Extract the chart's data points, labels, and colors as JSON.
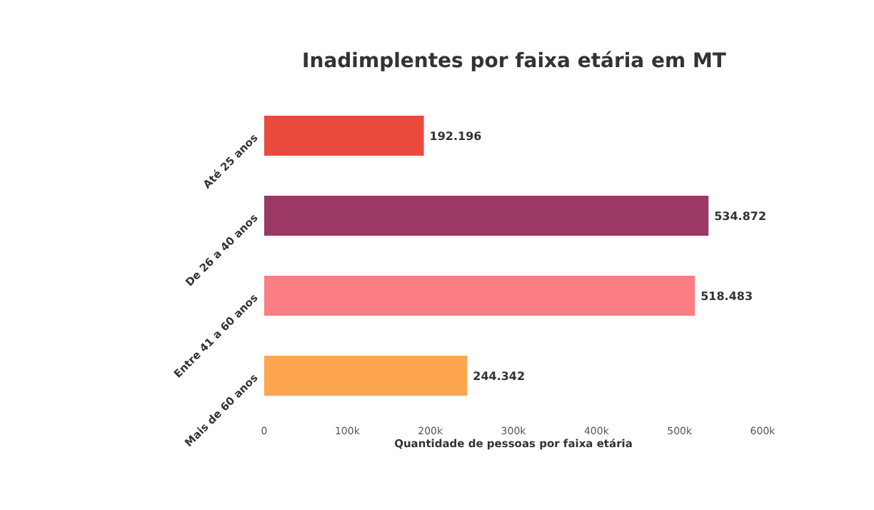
{
  "chart_data": {
    "type": "bar",
    "orientation": "horizontal",
    "title": "Inadimplentes por faixa etária em MT",
    "xlabel": "Quantidade de pessoas por faixa etária",
    "categories": [
      "Até 25 anos",
      "De 26 a 40 anos",
      "Entre 41 a 60 anos",
      "Mais de 60 anos"
    ],
    "values": [
      192196,
      534872,
      518483,
      244342
    ],
    "colors": [
      "#ea4a3d",
      "#9b3964",
      "#fb7e84",
      "#fda54f"
    ],
    "value_labels": [
      "192.196",
      "534.872",
      "518.483",
      "244.342"
    ],
    "xlim": [
      0,
      600000
    ],
    "xticks": [
      0,
      {
        "value": 100000,
        "label": "100k"
      },
      {
        "value": 200000,
        "label": "200k"
      },
      {
        "value": 300000,
        "label": "300k"
      },
      {
        "value": 400000,
        "label": "400k"
      },
      {
        "value": 500000,
        "label": "500k"
      },
      {
        "value": 600000,
        "label": "600k"
      }
    ]
  }
}
